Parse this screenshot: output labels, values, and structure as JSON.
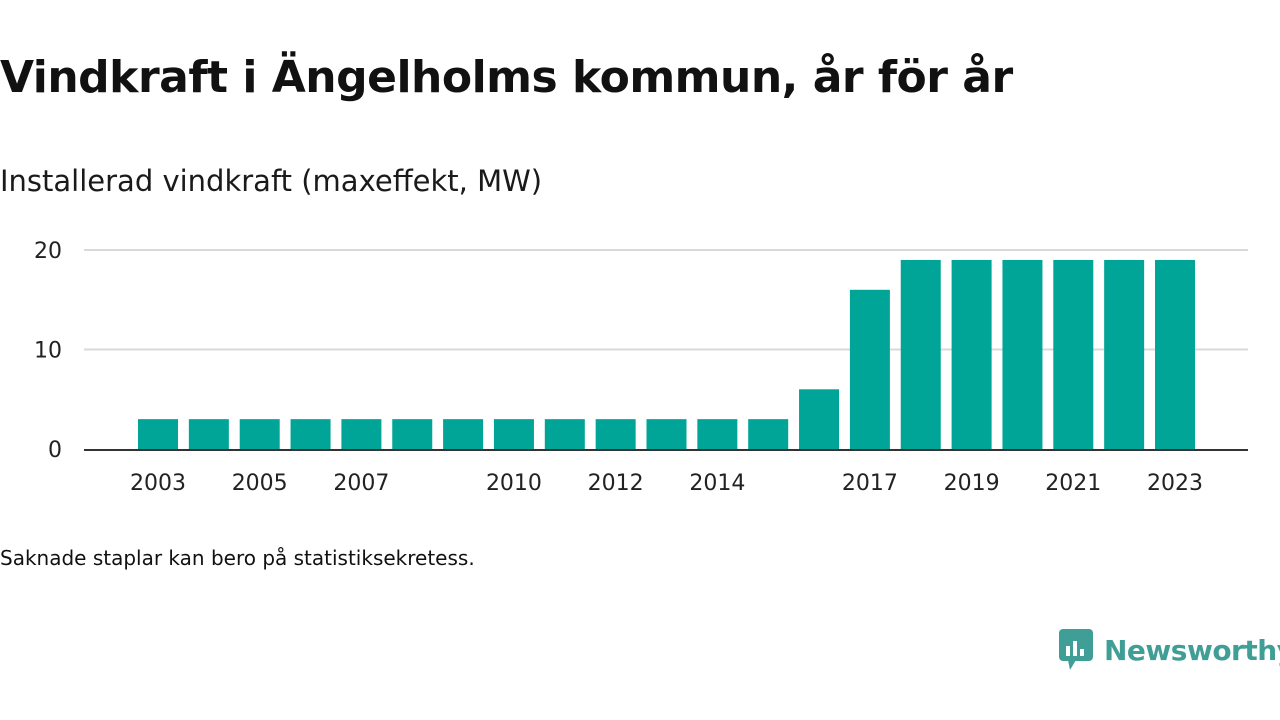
{
  "title": "Vindkraft i Ängelholms kommun, år för år",
  "subtitle": "Installerad vindkraft (maxeffekt, MW)",
  "note": "Saknade staplar kan bero på statistiksekretess.",
  "brand": "Newsworthy",
  "colors": {
    "bar": "#00a597",
    "grid": "#d9d9d9",
    "axis": "#333333",
    "brand": "#3f9f96"
  },
  "chart_data": {
    "type": "bar",
    "categories": [
      "2003",
      "2004",
      "2005",
      "2006",
      "2007",
      "2008",
      "2009",
      "2010",
      "2011",
      "2012",
      "2013",
      "2014",
      "2015",
      "2016",
      "2017",
      "2018",
      "2019",
      "2020",
      "2021",
      "2022",
      "2023"
    ],
    "values": [
      3,
      3,
      3,
      3,
      3,
      3,
      3,
      3,
      3,
      3,
      3,
      3,
      3,
      6,
      16,
      19,
      19,
      19,
      19,
      19,
      19
    ],
    "x_tick_labels": [
      "2003",
      "2005",
      "2007",
      "2010",
      "2012",
      "2014",
      "2017",
      "2019",
      "2021",
      "2023"
    ],
    "y_ticks": [
      0,
      10,
      20
    ],
    "ylim": [
      0,
      20
    ],
    "xlabel": "",
    "ylabel": "",
    "grid": true
  }
}
